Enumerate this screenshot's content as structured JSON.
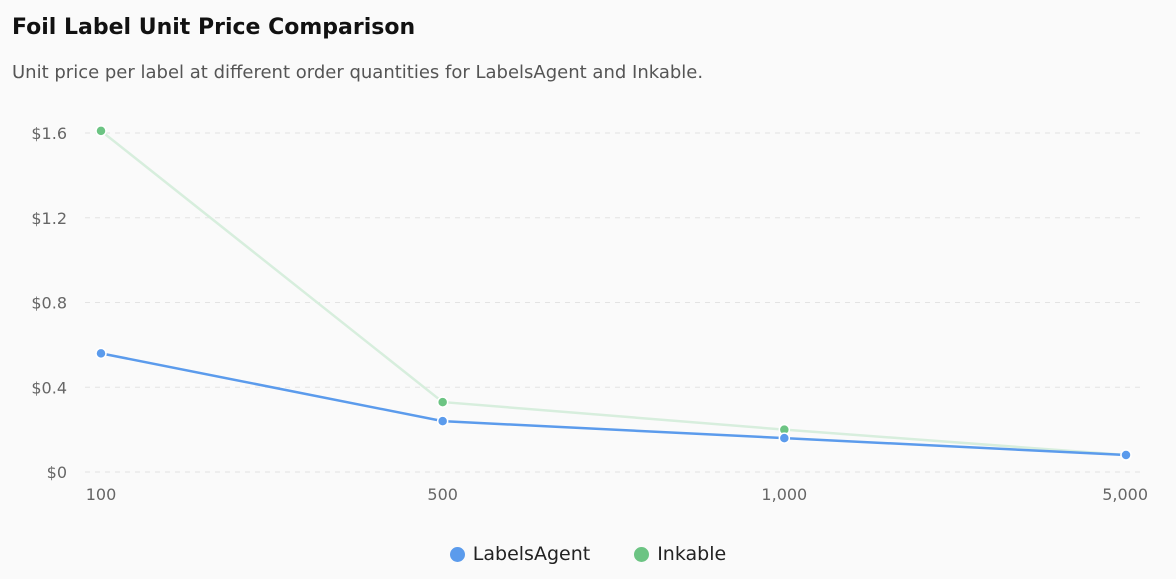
{
  "title": "Foil Label Unit Price Comparison",
  "subtitle": "Unit price per label at different order quantities for LabelsAgent and Inkable.",
  "chart_data": {
    "type": "line",
    "categories": [
      "100",
      "500",
      "1,000",
      "5,000"
    ],
    "y_ticks": [
      "$0",
      "$0.4",
      "$0.8",
      "$1.2",
      "$1.6"
    ],
    "ylim": [
      0,
      1.6
    ],
    "grid": true,
    "legend_position": "bottom",
    "series": [
      {
        "name": "LabelsAgent",
        "color": "#5b9bec",
        "values": [
          0.56,
          0.24,
          0.16,
          0.08
        ]
      },
      {
        "name": "Inkable",
        "color": "#6cc483",
        "line_color": "#d7eedd",
        "values": [
          1.61,
          0.33,
          0.2,
          0.08
        ]
      }
    ]
  }
}
